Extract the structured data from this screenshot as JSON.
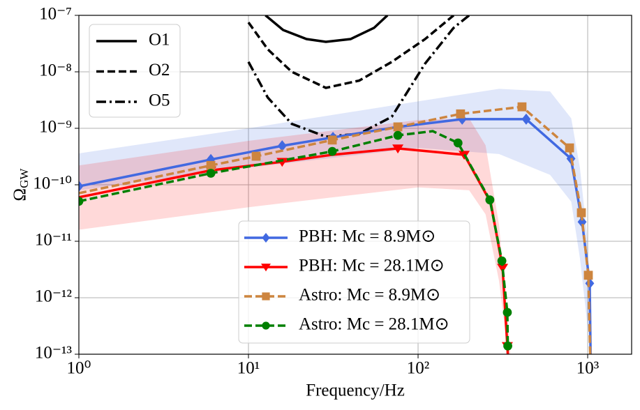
{
  "chart_data": {
    "type": "line",
    "xlabel": "Frequency/Hz",
    "ylabel": "Ω",
    "ylabel_sub": "GW",
    "xscale": "log",
    "yscale": "log",
    "grid": true,
    "xlim": [
      1,
      1816
    ],
    "ylim": [
      1e-13,
      1e-07
    ],
    "xticks": [
      {
        "value": 1,
        "label": "10⁰"
      },
      {
        "value": 10,
        "label": "10¹"
      },
      {
        "value": 100,
        "label": "10²"
      },
      {
        "value": 1000,
        "label": "10³"
      }
    ],
    "yticks": [
      {
        "value": 1e-13,
        "label": "10⁻¹³"
      },
      {
        "value": 1e-12,
        "label": "10⁻¹²"
      },
      {
        "value": 1e-11,
        "label": "10⁻¹¹"
      },
      {
        "value": 1e-10,
        "label": "10⁻¹⁰"
      },
      {
        "value": 1e-09,
        "label": "10⁻⁹"
      },
      {
        "value": 1e-08,
        "label": "10⁻⁸"
      },
      {
        "value": 1e-07,
        "label": "10⁻⁷"
      }
    ],
    "legend_loc": [
      "upper left",
      "lower center"
    ],
    "bands": [
      {
        "color": "#4169e1",
        "alpha": 0.16,
        "x": [
          1,
          10,
          100,
          300,
          600,
          800,
          900,
          1000,
          1050
        ],
        "upper": [
          3.6e-10,
          1e-09,
          3e-09,
          5e-09,
          4.5e-09,
          1.5e-09,
          2e-10,
          1e-11,
          1e-13
        ],
        "lower": [
          8e-11,
          2e-10,
          4.5e-10,
          3.5e-10,
          1.5e-10,
          5e-11,
          5e-12,
          3e-13,
          1e-13
        ]
      },
      {
        "color": "#ff0000",
        "alpha": 0.15,
        "x": [
          1,
          10,
          100,
          200,
          250,
          300,
          340,
          350
        ],
        "upper": [
          2.2e-10,
          6e-10,
          1.4e-09,
          1.5e-09,
          5e-10,
          2e-11,
          3e-13,
          1e-13
        ],
        "lower": [
          1.6e-11,
          4e-11,
          9e-11,
          8e-11,
          3e-11,
          2e-12,
          1e-13,
          1e-13
        ]
      }
    ],
    "series": [
      {
        "name": "O1",
        "color": "#000000",
        "style": "solid",
        "legend": 0,
        "x": [
          12.6,
          16,
          22,
          28.6,
          40,
          55,
          66
        ],
        "values": [
          1e-07,
          5.5e-08,
          3.8e-08,
          3.4e-08,
          3.8e-08,
          6e-08,
          1e-07
        ]
      },
      {
        "name": "O2",
        "color": "#000000",
        "style": "dashed",
        "legend": 0,
        "x": [
          10,
          13,
          18,
          28.6,
          45,
          70,
          110,
          162
        ],
        "values": [
          7.5e-08,
          2.5e-08,
          1e-08,
          5.2e-09,
          7e-09,
          1.5e-08,
          3.8e-08,
          1e-07
        ]
      },
      {
        "name": "O5",
        "color": "#000000",
        "style": "dashdot",
        "legend": 0,
        "x": [
          10,
          13,
          18,
          28.6,
          45,
          70,
          110,
          162,
          200
        ],
        "values": [
          1.5e-08,
          3.5e-09,
          1.2e-09,
          7.1e-10,
          8e-10,
          1.6e-09,
          1.4e-08,
          6e-08,
          1e-07
        ]
      },
      {
        "name": "PBH: Mc = 8.9M⊙",
        "color": "#4169e1",
        "style": "solid",
        "marker": "diamond",
        "legend": 1,
        "x": [
          1,
          6.0,
          15.8,
          31.5,
          76,
          182,
          434,
          797,
          927,
          1028,
          1040
        ],
        "values": [
          9.4e-11,
          2.8e-10,
          4.9e-10,
          6.9e-10,
          1.06e-09,
          1.45e-09,
          1.45e-09,
          2.9e-10,
          2.2e-11,
          1.8e-12,
          1e-13
        ],
        "markers_at": [
          0,
          1,
          2,
          3,
          5,
          6,
          7,
          8,
          9
        ]
      },
      {
        "name": "PBH: Mc = 28.1M⊙",
        "color": "#ff0000",
        "style": "solid",
        "marker": "triangle",
        "legend": 1,
        "x": [
          1,
          6.0,
          15.8,
          31.2,
          76,
          187,
          268,
          315,
          336,
          338
        ],
        "values": [
          6e-11,
          1.8e-10,
          2.55e-10,
          3.4e-10,
          4.4e-10,
          3.4e-10,
          4.9e-11,
          3.4e-12,
          1.4e-13,
          1e-13
        ],
        "markers_at": [
          1,
          2,
          4,
          5,
          7,
          8
        ]
      },
      {
        "name": "Astro: Mc = 8.9M⊙",
        "color": "#cd853f",
        "style": "dashed",
        "marker": "square",
        "legend": 1,
        "x": [
          1,
          6.0,
          11.1,
          31.2,
          76,
          178,
          410,
          782,
          918,
          1009,
          1035
        ],
        "values": [
          7.1e-11,
          2.2e-10,
          3.2e-10,
          6.2e-10,
          1.06e-09,
          1.8e-09,
          2.4e-09,
          4.5e-10,
          3.2e-11,
          2.5e-12,
          1e-13
        ],
        "markers_at": [
          1,
          2,
          3,
          4,
          5,
          6,
          7,
          8,
          9
        ]
      },
      {
        "name": "Astro: Mc = 28.1M⊙",
        "color": "#008000",
        "style": "dashed",
        "marker": "circle",
        "legend": 1,
        "x": [
          1,
          6.0,
          31.2,
          76,
          122,
          172,
          265,
          312,
          336,
          338
        ],
        "values": [
          5.1e-11,
          1.6e-10,
          3.9e-10,
          7.5e-10,
          8.9e-10,
          5.5e-10,
          5.4e-11,
          4.5e-12,
          5.5e-13,
          1.4e-13
        ],
        "markers_at": [
          0,
          1,
          2,
          3,
          5,
          6,
          7,
          8,
          9
        ]
      }
    ]
  }
}
